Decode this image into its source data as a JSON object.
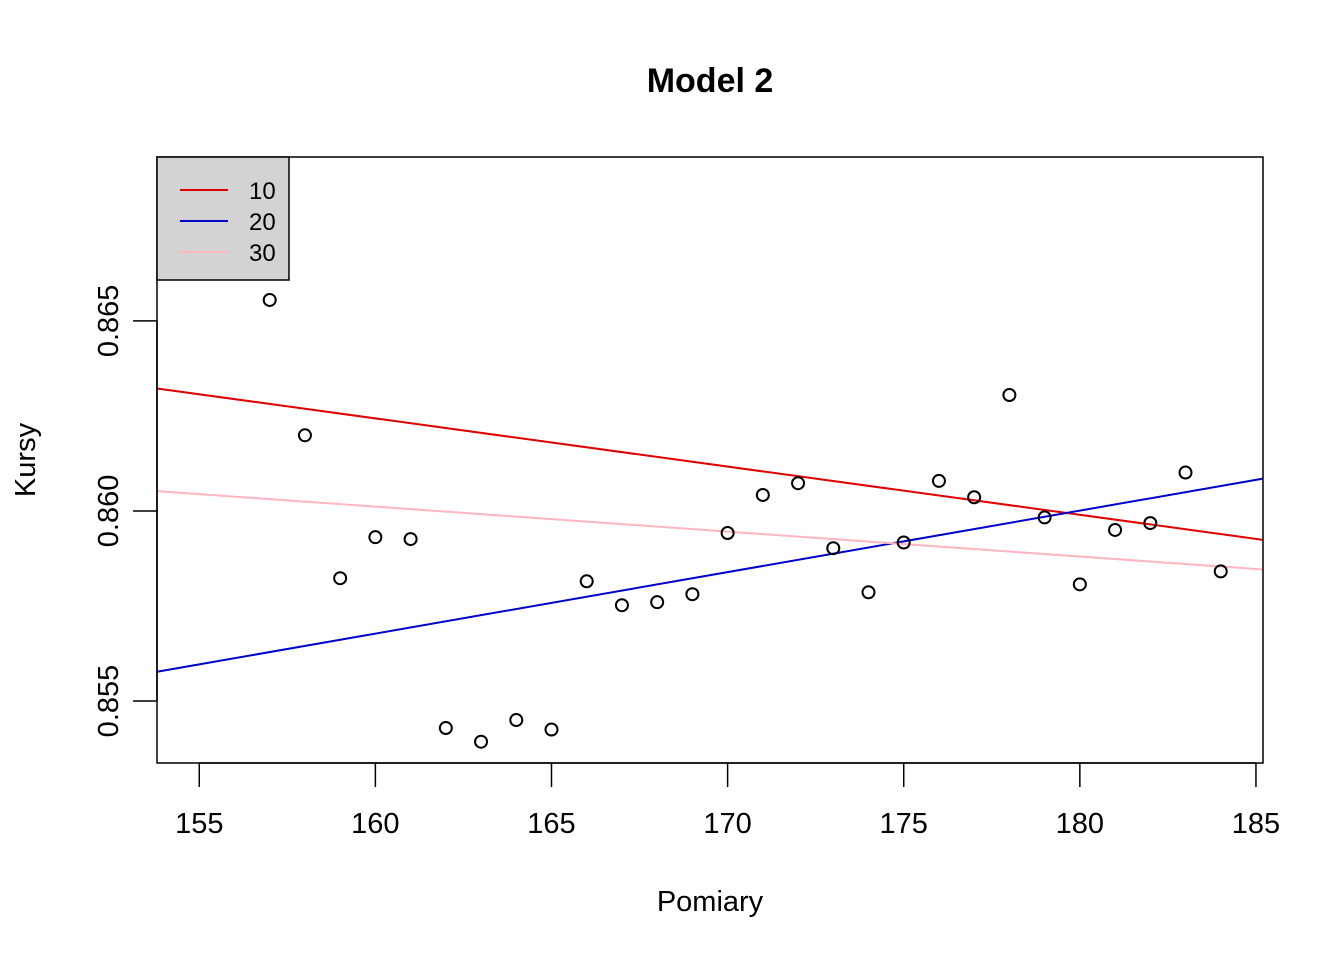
{
  "chart_data": {
    "type": "scatter",
    "title": "Model 2",
    "xlabel": "Pomiary",
    "ylabel": "Kursy",
    "xlim": [
      153.8,
      185.2
    ],
    "ylim": [
      0.85337,
      0.86931
    ],
    "x_ticks": [
      155,
      160,
      165,
      170,
      175,
      180,
      185
    ],
    "y_ticks": [
      0.855,
      0.86,
      0.865
    ],
    "x_tick_labels": [
      "155",
      "160",
      "165",
      "170",
      "175",
      "180",
      "185"
    ],
    "y_tick_labels": [
      "0.855",
      "0.860",
      "0.865"
    ],
    "grid": false,
    "legend_position": "top-left",
    "points": [
      {
        "x": 157,
        "y": 0.86555
      },
      {
        "x": 158,
        "y": 0.86199
      },
      {
        "x": 159,
        "y": 0.85823
      },
      {
        "x": 160,
        "y": 0.85931
      },
      {
        "x": 161,
        "y": 0.85926
      },
      {
        "x": 162,
        "y": 0.85429
      },
      {
        "x": 163,
        "y": 0.85393
      },
      {
        "x": 164,
        "y": 0.8545
      },
      {
        "x": 165,
        "y": 0.85425
      },
      {
        "x": 166,
        "y": 0.85815
      },
      {
        "x": 167,
        "y": 0.85752
      },
      {
        "x": 168,
        "y": 0.8576
      },
      {
        "x": 169,
        "y": 0.85781
      },
      {
        "x": 170,
        "y": 0.85942
      },
      {
        "x": 171,
        "y": 0.86042
      },
      {
        "x": 172,
        "y": 0.86073
      },
      {
        "x": 173,
        "y": 0.85902
      },
      {
        "x": 174,
        "y": 0.85786
      },
      {
        "x": 175,
        "y": 0.85917
      },
      {
        "x": 176,
        "y": 0.86079
      },
      {
        "x": 177,
        "y": 0.86036
      },
      {
        "x": 178,
        "y": 0.86305
      },
      {
        "x": 179,
        "y": 0.85983
      },
      {
        "x": 180,
        "y": 0.85807
      },
      {
        "x": 181,
        "y": 0.8595
      },
      {
        "x": 182,
        "y": 0.85968
      },
      {
        "x": 183,
        "y": 0.86101
      },
      {
        "x": 184,
        "y": 0.85841
      }
    ],
    "series": [
      {
        "name": "10",
        "color": "#e00000",
        "line": [
          [
            153.8,
            0.86322
          ],
          [
            185.2,
            0.85924
          ]
        ]
      },
      {
        "name": "20",
        "color": "#0000cc",
        "line": [
          [
            153.8,
            0.85577
          ],
          [
            185.2,
            0.86085
          ]
        ]
      },
      {
        "name": "30",
        "color": "#ffb6c1",
        "line": [
          [
            153.8,
            0.86052
          ],
          [
            185.2,
            0.85846
          ]
        ]
      }
    ]
  }
}
